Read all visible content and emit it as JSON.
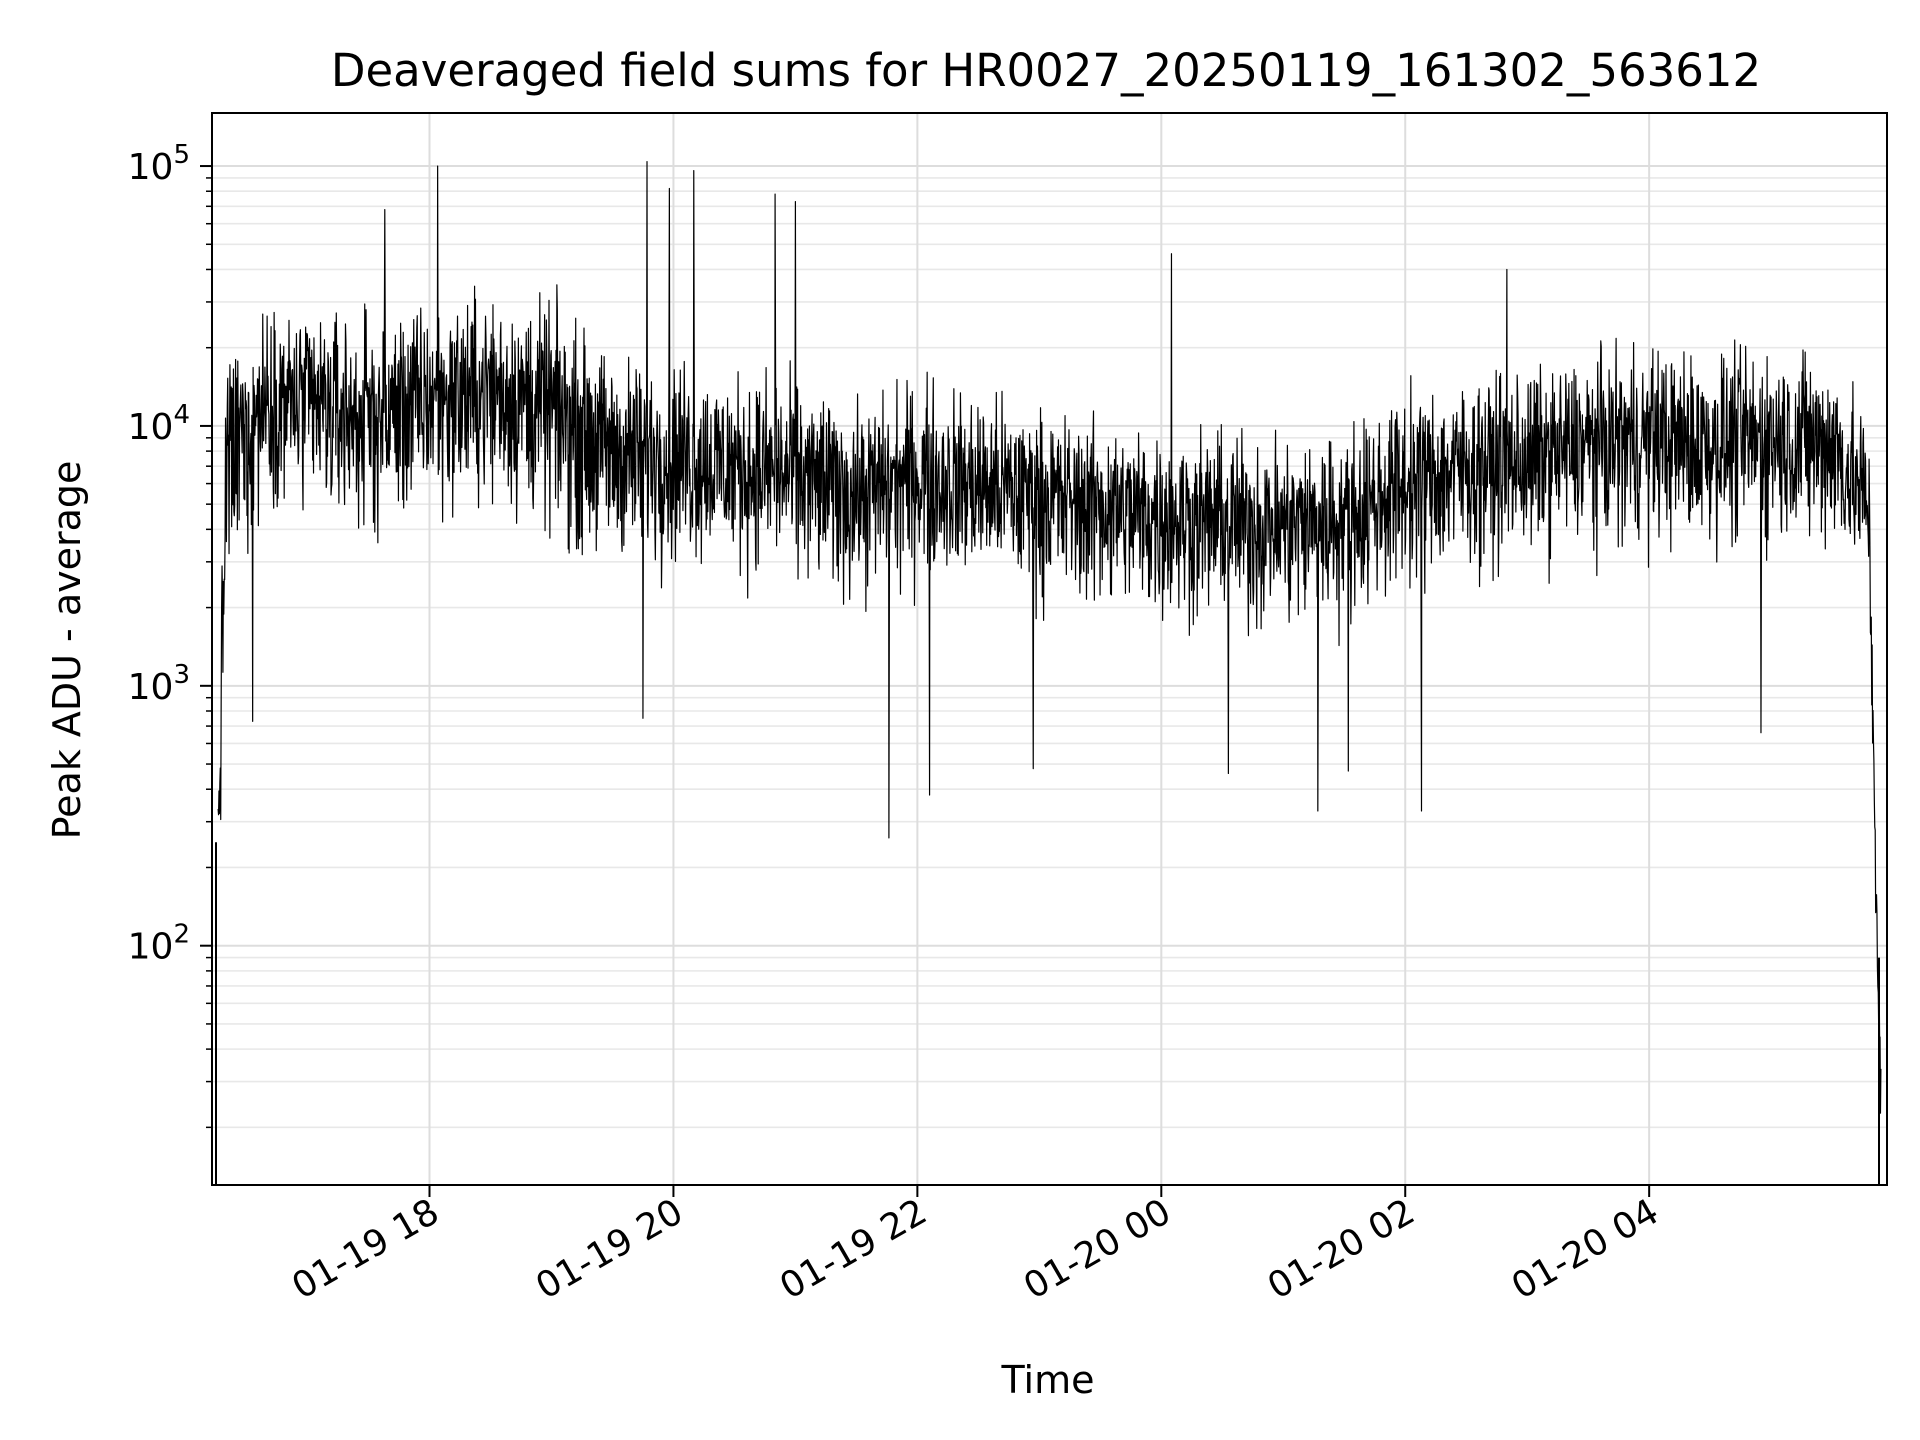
{
  "chart_data": {
    "type": "line",
    "title": "Deaveraged field sums for HR0027_20250119_161302_563612",
    "xlabel": "Time",
    "ylabel": "Peak ADU - average",
    "yscale": "log",
    "ylim": [
      12,
      160000
    ],
    "xlim": [
      "2025-01-19 16:13",
      "2025-01-20 05:57"
    ],
    "grid": true,
    "x_ticks": [
      {
        "t": "2025-01-19 18:00",
        "label": "01-19 18"
      },
      {
        "t": "2025-01-19 20:00",
        "label": "01-19 20"
      },
      {
        "t": "2025-01-19 22:00",
        "label": "01-19 22"
      },
      {
        "t": "2025-01-20 00:00",
        "label": "01-20 00"
      },
      {
        "t": "2025-01-20 02:00",
        "label": "01-20 02"
      },
      {
        "t": "2025-01-20 04:00",
        "label": "01-20 04"
      }
    ],
    "y_ticks": [
      {
        "value": 100,
        "base": "10",
        "exp": "2"
      },
      {
        "value": 1000,
        "base": "10",
        "exp": "3"
      },
      {
        "value": 10000,
        "base": "10",
        "exp": "4"
      },
      {
        "value": 100000,
        "base": "10",
        "exp": "5"
      }
    ],
    "series": [
      {
        "color": "#000000",
        "profile": [
          {
            "t": "2025-01-19 16:16",
            "median": 250,
            "low": 60,
            "high": 600
          },
          {
            "t": "2025-01-19 16:20",
            "median": 8000,
            "low": 900,
            "high": 25000
          },
          {
            "t": "2025-01-19 16:40",
            "median": 13000,
            "low": 4000,
            "high": 40000
          },
          {
            "t": "2025-01-19 17:00",
            "median": 12000,
            "low": 3000,
            "high": 40000
          },
          {
            "t": "2025-01-19 17:30",
            "median": 11000,
            "low": 2500,
            "high": 35000
          },
          {
            "t": "2025-01-19 18:00",
            "median": 13000,
            "low": 3000,
            "high": 40000
          },
          {
            "t": "2025-01-19 18:30",
            "median": 14000,
            "low": 3500,
            "high": 45000
          },
          {
            "t": "2025-01-19 19:00",
            "median": 12000,
            "low": 2500,
            "high": 40000
          },
          {
            "t": "2025-01-19 19:30",
            "median": 8000,
            "low": 2000,
            "high": 25000
          },
          {
            "t": "2025-01-19 20:00",
            "median": 8000,
            "low": 2000,
            "high": 25000
          },
          {
            "t": "2025-01-19 20:30",
            "median": 7000,
            "low": 2000,
            "high": 22000
          },
          {
            "t": "2025-01-19 21:00",
            "median": 6500,
            "low": 1800,
            "high": 20000
          },
          {
            "t": "2025-01-19 21:30",
            "median": 5500,
            "low": 1500,
            "high": 16000
          },
          {
            "t": "2025-01-19 22:00",
            "median": 6500,
            "low": 1800,
            "high": 20000
          },
          {
            "t": "2025-01-19 22:30",
            "median": 6000,
            "low": 1700,
            "high": 18000
          },
          {
            "t": "2025-01-19 23:00",
            "median": 5500,
            "low": 1500,
            "high": 15000
          },
          {
            "t": "2025-01-19 23:30",
            "median": 5000,
            "low": 1400,
            "high": 14000
          },
          {
            "t": "2025-01-20 00:00",
            "median": 4500,
            "low": 1300,
            "high": 13000
          },
          {
            "t": "2025-01-20 00:30",
            "median": 4500,
            "low": 1200,
            "high": 12000
          },
          {
            "t": "2025-01-20 01:00",
            "median": 4200,
            "low": 1100,
            "high": 12000
          },
          {
            "t": "2025-01-20 01:30",
            "median": 4500,
            "low": 1200,
            "high": 13000
          },
          {
            "t": "2025-01-20 02:00",
            "median": 6000,
            "low": 1700,
            "high": 18000
          },
          {
            "t": "2025-01-20 02:30",
            "median": 7000,
            "low": 2000,
            "high": 20000
          },
          {
            "t": "2025-01-20 03:00",
            "median": 7500,
            "low": 2200,
            "high": 22000
          },
          {
            "t": "2025-01-20 03:30",
            "median": 8500,
            "low": 2500,
            "high": 25000
          },
          {
            "t": "2025-01-20 04:00",
            "median": 9000,
            "low": 2500,
            "high": 28000
          },
          {
            "t": "2025-01-20 04:30",
            "median": 8500,
            "low": 2500,
            "high": 26000
          },
          {
            "t": "2025-01-20 05:00",
            "median": 9000,
            "low": 2500,
            "high": 28000
          },
          {
            "t": "2025-01-20 05:30",
            "median": 8500,
            "low": 2500,
            "high": 26000
          },
          {
            "t": "2025-01-20 05:48",
            "median": 5000,
            "low": 1500,
            "high": 15000
          },
          {
            "t": "2025-01-20 05:50",
            "median": 900,
            "low": 300,
            "high": 1300
          },
          {
            "t": "2025-01-20 05:52",
            "median": 120,
            "low": 80,
            "high": 220
          },
          {
            "t": "2025-01-20 05:54",
            "median": 20,
            "low": 12,
            "high": 80
          }
        ],
        "spikes": [
          {
            "t": "2025-01-19 17:38",
            "value": 68000
          },
          {
            "t": "2025-01-19 18:04",
            "value": 100000
          },
          {
            "t": "2025-01-19 19:47",
            "value": 104000
          },
          {
            "t": "2025-01-19 19:58",
            "value": 82000
          },
          {
            "t": "2025-01-19 20:10",
            "value": 96000
          },
          {
            "t": "2025-01-19 20:50",
            "value": 78000
          },
          {
            "t": "2025-01-19 21:00",
            "value": 73000
          },
          {
            "t": "2025-01-20 00:05",
            "value": 46000
          },
          {
            "t": "2025-01-20 02:50",
            "value": 40000
          },
          {
            "t": "2025-01-19 21:46",
            "value": 260
          },
          {
            "t": "2025-01-19 22:06",
            "value": 380
          },
          {
            "t": "2025-01-19 22:57",
            "value": 480
          },
          {
            "t": "2025-01-20 00:33",
            "value": 460
          },
          {
            "t": "2025-01-20 01:17",
            "value": 330
          },
          {
            "t": "2025-01-20 02:08",
            "value": 330
          },
          {
            "t": "2025-01-20 01:32",
            "value": 470
          },
          {
            "t": "2025-01-19 16:33",
            "value": 730
          },
          {
            "t": "2025-01-19 19:45",
            "value": 750
          },
          {
            "t": "2025-01-20 04:55",
            "value": 660
          }
        ]
      }
    ]
  }
}
